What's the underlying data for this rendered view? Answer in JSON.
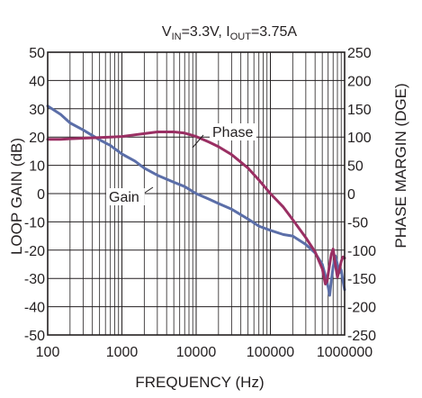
{
  "chart_data": {
    "type": "line",
    "title_main": "V",
    "title_sub1": "IN",
    "title_mid": "=3.3V, I",
    "title_sub2": "OUT",
    "title_end": "=3.75A",
    "xlabel": "FREQUENCY (Hz)",
    "ylabel_left": "LOOP GAIN (dB)",
    "ylabel_right": "PHASE MARGIN (DGE)",
    "xscale": "log",
    "xlim": [
      100,
      1000000
    ],
    "ylim_left": [
      -50,
      50
    ],
    "ylim_right": [
      -250,
      250
    ],
    "grid": true,
    "x_ticks": [
      100,
      1000,
      10000,
      100000,
      1000000
    ],
    "x_tick_labels": [
      "100",
      "1000",
      "10000",
      "100000",
      "1000000"
    ],
    "y_left_ticks": [
      -50,
      -40,
      -30,
      -20,
      -10,
      0,
      10,
      20,
      30,
      40,
      50
    ],
    "y_left_tick_labels": [
      "-50",
      "-40",
      "-30",
      "-20",
      "-10",
      "0",
      "10",
      "20",
      "30",
      "40",
      "50"
    ],
    "y_right_ticks": [
      -250,
      -200,
      -150,
      -100,
      -50,
      0,
      50,
      100,
      150,
      200,
      250
    ],
    "y_right_tick_labels": [
      "-250",
      "-200",
      "-150",
      "-100",
      "-50",
      "0",
      "50",
      "100",
      "150",
      "200",
      "250"
    ],
    "series": [
      {
        "name": "Gain",
        "axis": "left",
        "color": "#5b6ea8",
        "points": [
          [
            100,
            31
          ],
          [
            150,
            28
          ],
          [
            200,
            25
          ],
          [
            300,
            22.5
          ],
          [
            500,
            19
          ],
          [
            700,
            17
          ],
          [
            1000,
            14
          ],
          [
            1500,
            11.5
          ],
          [
            2000,
            9
          ],
          [
            3000,
            6.5
          ],
          [
            5000,
            4
          ],
          [
            7000,
            2.5
          ],
          [
            10000,
            0
          ],
          [
            15000,
            -2
          ],
          [
            20000,
            -3.5
          ],
          [
            30000,
            -5.5
          ],
          [
            50000,
            -9
          ],
          [
            70000,
            -11.5
          ],
          [
            100000,
            -13
          ],
          [
            150000,
            -14.5
          ],
          [
            200000,
            -15
          ],
          [
            300000,
            -18
          ],
          [
            400000,
            -21
          ],
          [
            500000,
            -25
          ],
          [
            550000,
            -29
          ],
          [
            600000,
            -33
          ],
          [
            630000,
            -36
          ],
          [
            660000,
            -31
          ],
          [
            700000,
            -26
          ],
          [
            750000,
            -22
          ],
          [
            800000,
            -25
          ],
          [
            850000,
            -28
          ],
          [
            900000,
            -27
          ],
          [
            950000,
            -31
          ],
          [
            1000000,
            -34
          ]
        ]
      },
      {
        "name": "Phase",
        "axis": "right",
        "color": "#9a2f63",
        "points": [
          [
            100,
            96
          ],
          [
            150,
            96
          ],
          [
            200,
            97
          ],
          [
            300,
            98
          ],
          [
            500,
            99
          ],
          [
            1000,
            101
          ],
          [
            1500,
            104
          ],
          [
            2000,
            106
          ],
          [
            3000,
            109
          ],
          [
            5000,
            109
          ],
          [
            7000,
            107
          ],
          [
            10000,
            101
          ],
          [
            15000,
            91
          ],
          [
            20000,
            83
          ],
          [
            30000,
            69
          ],
          [
            50000,
            45
          ],
          [
            70000,
            24
          ],
          [
            100000,
            0
          ],
          [
            150000,
            -24
          ],
          [
            200000,
            -46
          ],
          [
            300000,
            -78
          ],
          [
            400000,
            -103
          ],
          [
            500000,
            -133
          ],
          [
            550000,
            -160
          ],
          [
            580000,
            -155
          ],
          [
            620000,
            -130
          ],
          [
            660000,
            -108
          ],
          [
            700000,
            -98
          ],
          [
            750000,
            -125
          ],
          [
            800000,
            -148
          ],
          [
            850000,
            -135
          ],
          [
            900000,
            -120
          ],
          [
            950000,
            -112
          ],
          [
            1000000,
            -114
          ]
        ]
      }
    ],
    "annotations": [
      {
        "text": "Phase",
        "series": "Phase"
      },
      {
        "text": "Gain",
        "series": "Gain"
      }
    ]
  }
}
